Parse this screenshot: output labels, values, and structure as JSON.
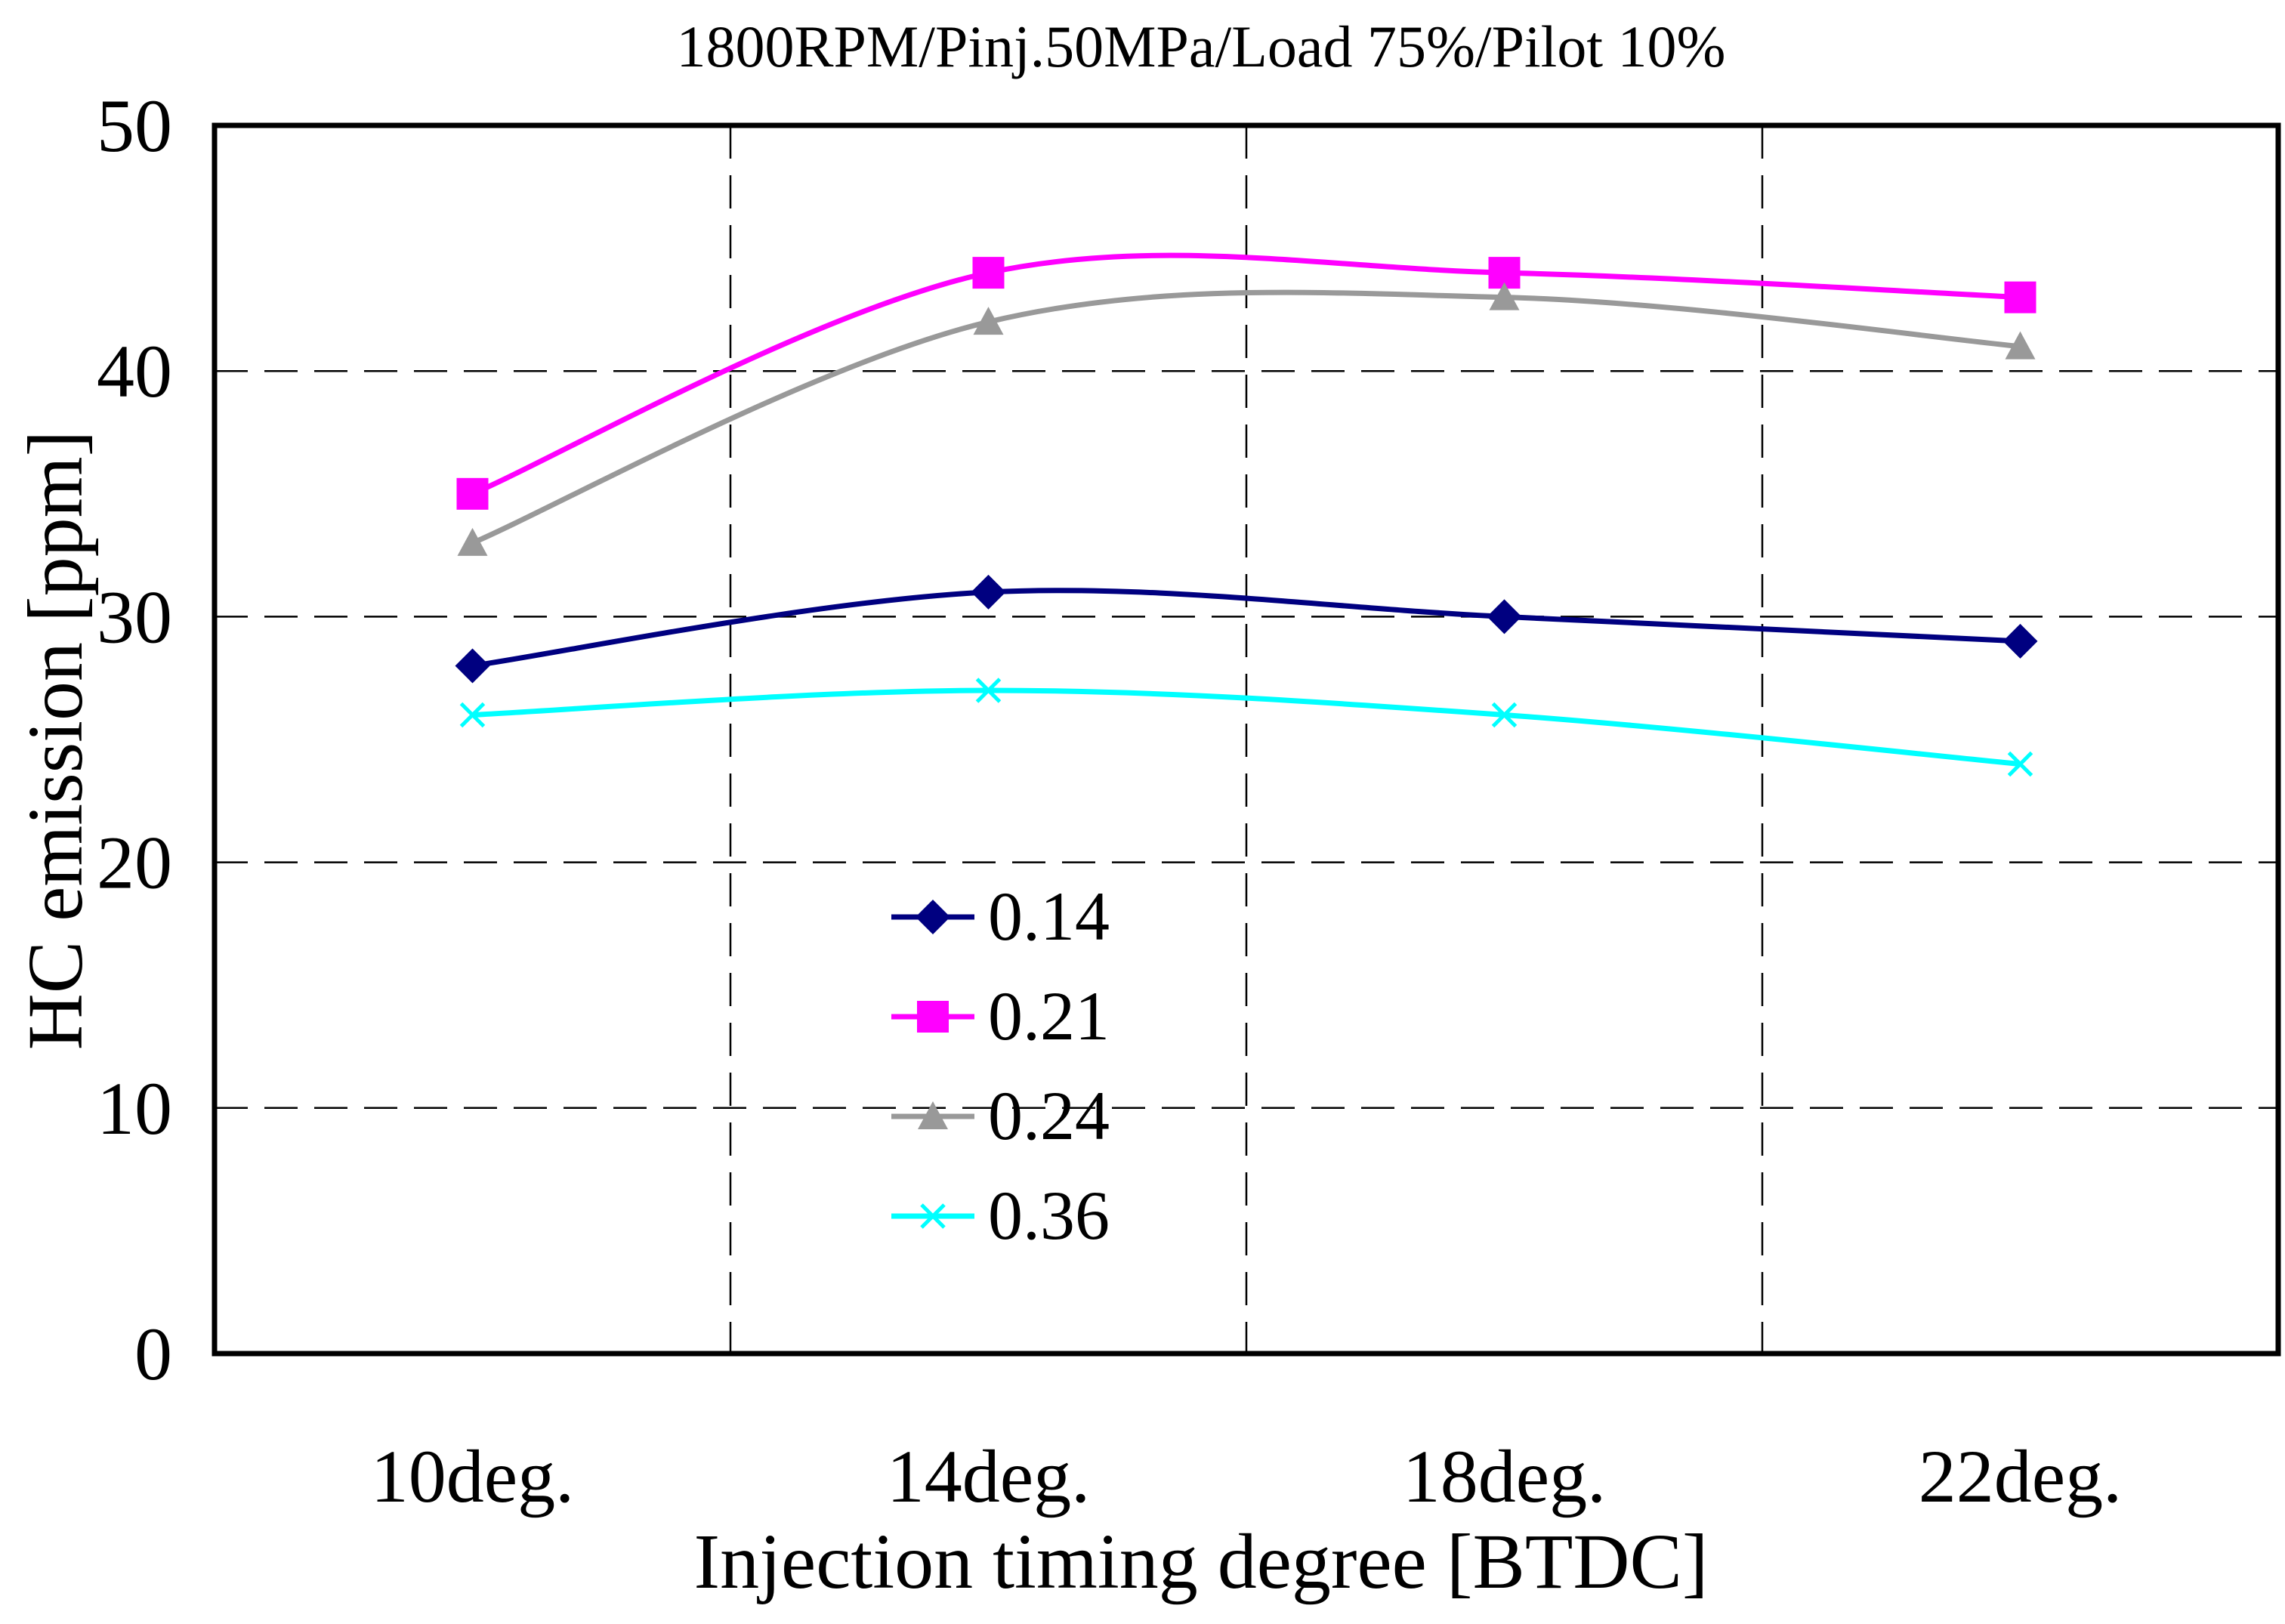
{
  "chart_data": {
    "type": "line",
    "title": "1800RPM/Pinj.50MPa/Load 75%/Pilot 10%",
    "xlabel": "Injection timing degree [BTDC]",
    "ylabel": "HC emission [ppm]",
    "categories": [
      "10deg.",
      "14deg.",
      "18deg.",
      "22deg."
    ],
    "ylim": [
      0,
      50
    ],
    "yticks": [
      0,
      10,
      20,
      30,
      40,
      50
    ],
    "grid": true,
    "smooth": true,
    "legend_position": "center-left",
    "series": [
      {
        "name": "0.14",
        "values": [
          28,
          31,
          30,
          29
        ],
        "color": "#000080",
        "marker": "diamond"
      },
      {
        "name": "0.21",
        "values": [
          35,
          44,
          44,
          43
        ],
        "color": "#ff00ff",
        "marker": "square"
      },
      {
        "name": "0.24",
        "values": [
          33,
          42,
          43,
          41
        ],
        "color": "#999999",
        "marker": "triangle"
      },
      {
        "name": "0.36",
        "values": [
          26,
          27,
          26,
          24
        ],
        "color": "#00ffff",
        "marker": "x"
      }
    ]
  }
}
